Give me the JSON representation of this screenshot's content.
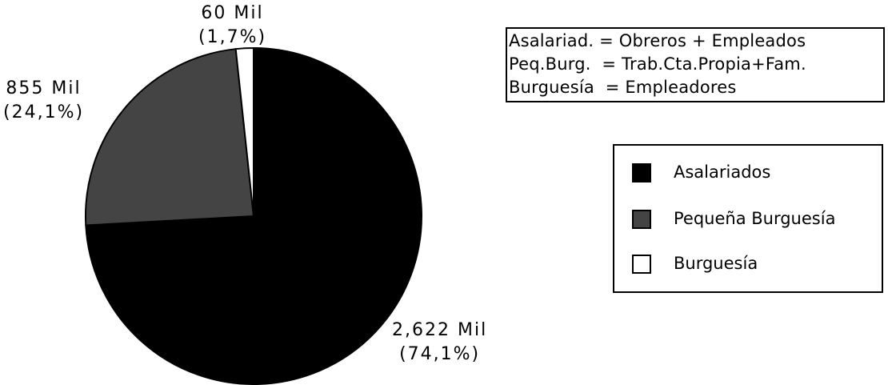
{
  "chart_data": {
    "type": "pie",
    "title": "",
    "categories": [
      "Asalariados",
      "Pequeña Burguesía",
      "Burguesía"
    ],
    "values": [
      2622,
      855,
      60
    ],
    "percentages": [
      74.1,
      24.1,
      1.7
    ],
    "colors": [
      "#000000",
      "#444444",
      "#ffffff"
    ],
    "data_labels": [
      {
        "value": "2,622 Mil",
        "pct": "(74,1%)"
      },
      {
        "value": "855 Mil",
        "pct": "(24,1%)"
      },
      {
        "value": "60 Mil",
        "pct": "(1,7%)"
      }
    ],
    "legend_position": "right",
    "notes": [
      "Asalariad. = Obreros + Empleados",
      "Peq.Burg.  = Trab.Cta.Propia+Fam.",
      "Burguesía  = Empleadores"
    ]
  }
}
